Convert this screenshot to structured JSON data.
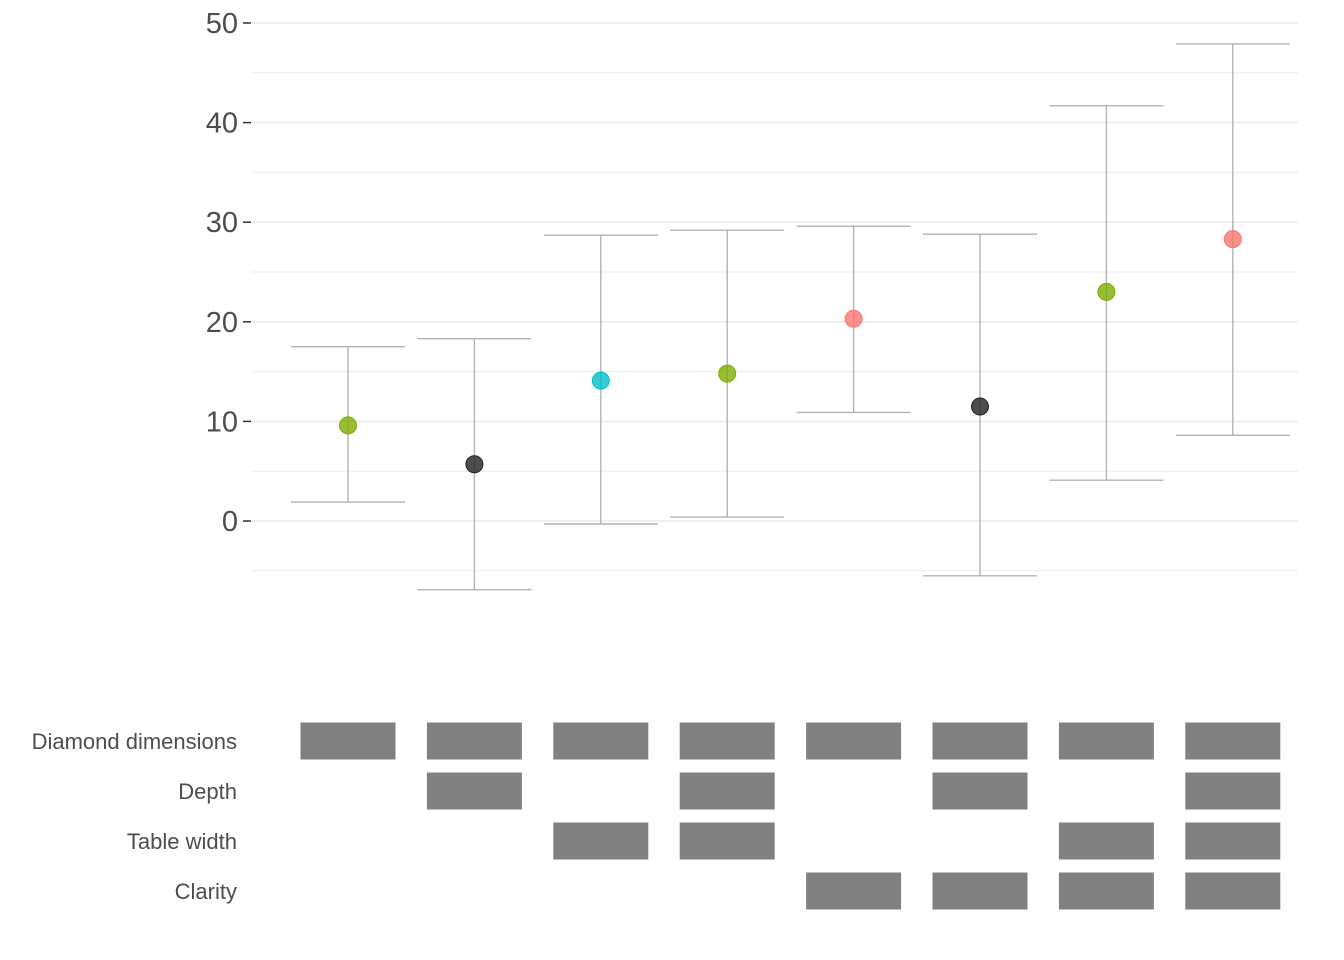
{
  "chart_data": {
    "type": "scatter",
    "title": "",
    "xlabel": "",
    "ylabel": "",
    "ylim": [
      -7,
      50
    ],
    "y_ticks": [
      0,
      10,
      20,
      30,
      40,
      50
    ],
    "grid": true,
    "legend": "none",
    "points": [
      {
        "estimate": 9.6,
        "lower": 1.9,
        "upper": 17.5,
        "color": "#7CAE00"
      },
      {
        "estimate": 5.7,
        "lower": -6.9,
        "upper": 18.3,
        "color": "#222222"
      },
      {
        "estimate": 14.1,
        "lower": -0.3,
        "upper": 28.7,
        "color": "#00BFC4"
      },
      {
        "estimate": 14.8,
        "lower": 0.4,
        "upper": 29.2,
        "color": "#7CAE00"
      },
      {
        "estimate": 20.3,
        "lower": 10.9,
        "upper": 29.6,
        "color": "#F8766D"
      },
      {
        "estimate": 11.5,
        "lower": -5.5,
        "upper": 28.8,
        "color": "#222222"
      },
      {
        "estimate": 23.0,
        "lower": 4.1,
        "upper": 41.7,
        "color": "#7CAE00"
      },
      {
        "estimate": 28.3,
        "lower": 8.6,
        "upper": 47.9,
        "color": "#F8766D"
      }
    ],
    "indicator_rows": [
      {
        "label": "Diamond dimensions",
        "included": [
          true,
          true,
          true,
          true,
          true,
          true,
          true,
          true
        ]
      },
      {
        "label": "Depth",
        "included": [
          false,
          true,
          false,
          true,
          false,
          true,
          false,
          true
        ]
      },
      {
        "label": "Table width",
        "included": [
          false,
          false,
          true,
          true,
          false,
          false,
          true,
          true
        ]
      },
      {
        "label": "Clarity",
        "included": [
          false,
          false,
          false,
          false,
          true,
          true,
          true,
          true
        ]
      }
    ],
    "colors": {
      "grid": "#ebebeb",
      "errorbar": "#b3b3b3",
      "axis_tick": "#333333",
      "indicator": "#808080"
    }
  }
}
